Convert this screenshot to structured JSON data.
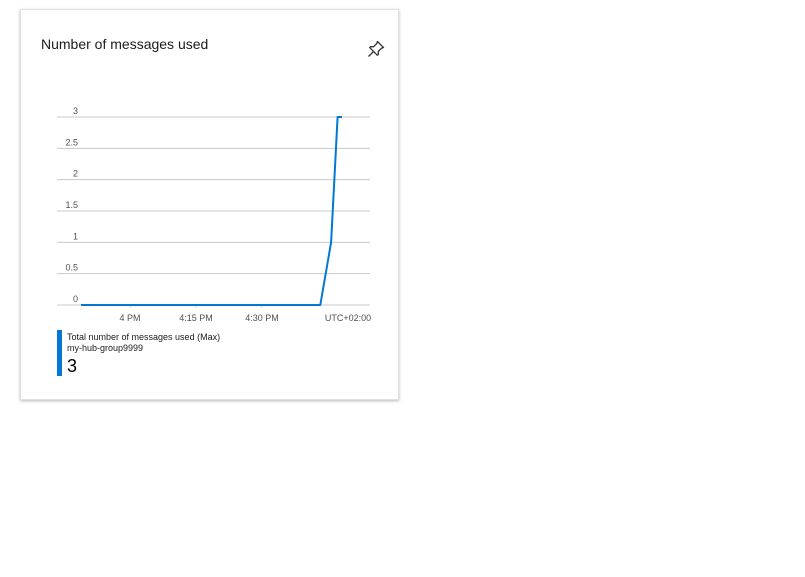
{
  "tile": {
    "title": "Number of messages used",
    "pin_icon": "pin-icon"
  },
  "colors": {
    "series": "#0078d4",
    "grid": "#c8c8c8",
    "axis_text": "#505050"
  },
  "legend": {
    "metric": "Total number of messages used (Max)",
    "resource": "my-hub-group9999",
    "value": "3"
  },
  "chart_data": {
    "type": "line",
    "y_ticks": [
      "0",
      "0.5",
      "1",
      "1.5",
      "2",
      "2.5",
      "3"
    ],
    "ylim": [
      0,
      3
    ],
    "x_ticks": [
      "4 PM",
      "4:15 PM",
      "4:30 PM",
      "UTC+02:00"
    ],
    "series": [
      {
        "name": "Total number of messages used (Max)",
        "points": [
          {
            "t": 0,
            "y": 0
          },
          {
            "t": 55,
            "y": 0
          },
          {
            "t": 57.5,
            "y": 1
          },
          {
            "t": 59,
            "y": 3
          },
          {
            "t": 60,
            "y": 3
          }
        ]
      }
    ],
    "grid": true
  }
}
